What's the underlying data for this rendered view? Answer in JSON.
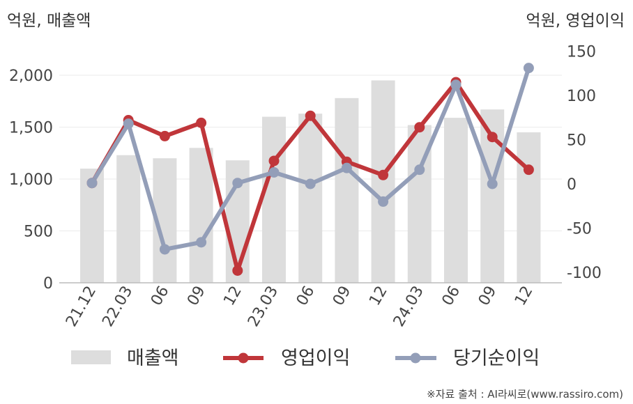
{
  "chart_data": {
    "type": "bar",
    "left_axis_unit": "억원, 매출액",
    "right_axis_unit": "억원, 영업이익",
    "categories": [
      "21.12",
      "22.03",
      "06",
      "09",
      "12",
      "23.03",
      "06",
      "09",
      "12",
      "24.03",
      "06",
      "09",
      "12"
    ],
    "left_ylim": [
      0,
      2000
    ],
    "left_ticks": [
      0,
      500,
      1000,
      1500,
      2000
    ],
    "left_tick_labels": [
      "0",
      "500",
      "1,000",
      "1,500",
      "2,000"
    ],
    "right_ylim": [
      -100,
      150
    ],
    "right_ticks": [
      -100,
      -50,
      0,
      50,
      100,
      150
    ],
    "right_tick_labels": [
      "-100",
      "-50",
      "0",
      "50",
      "100",
      "150"
    ],
    "grid": true,
    "legend_position": "bottom",
    "series": [
      {
        "name": "매출액",
        "kind": "bar",
        "axis": "left",
        "color": "#dddddd",
        "values": [
          1100,
          1230,
          1200,
          1300,
          1180,
          1600,
          1630,
          1780,
          1950,
          1520,
          1590,
          1670,
          1450
        ]
      },
      {
        "name": "영업이익",
        "kind": "line",
        "axis": "right",
        "color": "#c0363a",
        "values": [
          1,
          72,
          54,
          69,
          -98,
          26,
          77,
          25,
          10,
          64,
          115,
          53,
          16
        ]
      },
      {
        "name": "당기순이익",
        "kind": "line",
        "axis": "right",
        "color": "#939eb8",
        "values": [
          1,
          68,
          -74,
          -66,
          1,
          13,
          0,
          18,
          -20,
          16,
          112,
          0,
          131
        ]
      }
    ]
  },
  "source": "※자료 출처 : AI라씨로(www.rassiro.com)"
}
